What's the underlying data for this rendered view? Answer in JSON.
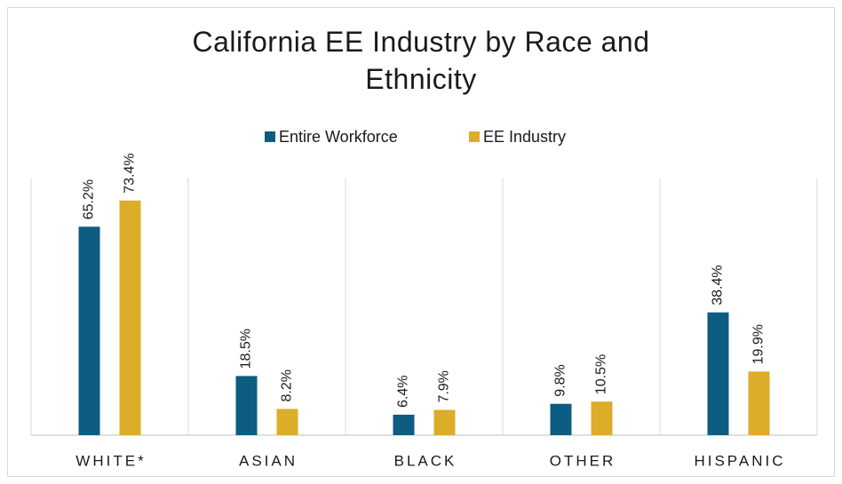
{
  "chart_data": {
    "type": "bar",
    "title": "California EE Industry by Race and Ethnicity",
    "categories": [
      "WHITE*",
      "ASIAN",
      "BLACK",
      "OTHER",
      "HISPANIC"
    ],
    "series": [
      {
        "name": "Entire Workforce",
        "color": "#0d5c82",
        "values": [
          65.2,
          18.5,
          6.4,
          9.8,
          38.4
        ],
        "value_labels": [
          "65.2%",
          "18.5%",
          "6.4%",
          "9.8%",
          "38.4%"
        ]
      },
      {
        "name": "EE Industry",
        "color": "#dcad29",
        "values": [
          73.4,
          8.2,
          7.9,
          10.5,
          19.9
        ],
        "value_labels": [
          "73.4%",
          "8.2%",
          "7.9%",
          "10.5%",
          "19.9%"
        ]
      }
    ],
    "legend": "top"
  }
}
